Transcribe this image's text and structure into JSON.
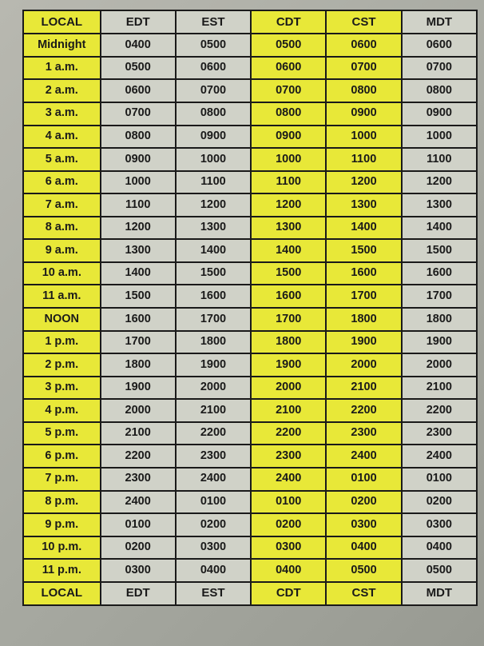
{
  "table": {
    "type": "table",
    "background_color": "#d0d2c8",
    "highlight_color": "#e8e838",
    "border_color": "#1a1a1a",
    "text_color": "#1a1a1a",
    "font_family": "Verdana, Arial, sans-serif",
    "header_fontsize": 15,
    "cell_fontsize": 14.5,
    "font_weight": "bold",
    "border_width": 2,
    "columns": [
      "LOCAL",
      "EDT",
      "EST",
      "CDT",
      "CST",
      "MDT"
    ],
    "column_highlight": [
      true,
      false,
      false,
      true,
      true,
      false
    ],
    "rows": [
      [
        "Midnight",
        "0400",
        "0500",
        "0500",
        "0600",
        "0600"
      ],
      [
        "1 a.m.",
        "0500",
        "0600",
        "0600",
        "0700",
        "0700"
      ],
      [
        "2 a.m.",
        "0600",
        "0700",
        "0700",
        "0800",
        "0800"
      ],
      [
        "3 a.m.",
        "0700",
        "0800",
        "0800",
        "0900",
        "0900"
      ],
      [
        "4 a.m.",
        "0800",
        "0900",
        "0900",
        "1000",
        "1000"
      ],
      [
        "5 a.m.",
        "0900",
        "1000",
        "1000",
        "1100",
        "1100"
      ],
      [
        "6 a.m.",
        "1000",
        "1100",
        "1100",
        "1200",
        "1200"
      ],
      [
        "7 a.m.",
        "1100",
        "1200",
        "1200",
        "1300",
        "1300"
      ],
      [
        "8 a.m.",
        "1200",
        "1300",
        "1300",
        "1400",
        "1400"
      ],
      [
        "9 a.m.",
        "1300",
        "1400",
        "1400",
        "1500",
        "1500"
      ],
      [
        "10 a.m.",
        "1400",
        "1500",
        "1500",
        "1600",
        "1600"
      ],
      [
        "11 a.m.",
        "1500",
        "1600",
        "1600",
        "1700",
        "1700"
      ],
      [
        "NOON",
        "1600",
        "1700",
        "1700",
        "1800",
        "1800"
      ],
      [
        "1 p.m.",
        "1700",
        "1800",
        "1800",
        "1900",
        "1900"
      ],
      [
        "2 p.m.",
        "1800",
        "1900",
        "1900",
        "2000",
        "2000"
      ],
      [
        "3 p.m.",
        "1900",
        "2000",
        "2000",
        "2100",
        "2100"
      ],
      [
        "4 p.m.",
        "2000",
        "2100",
        "2100",
        "2200",
        "2200"
      ],
      [
        "5 p.m.",
        "2100",
        "2200",
        "2200",
        "2300",
        "2300"
      ],
      [
        "6 p.m.",
        "2200",
        "2300",
        "2300",
        "2400",
        "2400"
      ],
      [
        "7 p.m.",
        "2300",
        "2400",
        "2400",
        "0100",
        "0100"
      ],
      [
        "8 p.m.",
        "2400",
        "0100",
        "0100",
        "0200",
        "0200"
      ],
      [
        "9 p.m.",
        "0100",
        "0200",
        "0200",
        "0300",
        "0300"
      ],
      [
        "10 p.m.",
        "0200",
        "0300",
        "0300",
        "0400",
        "0400"
      ],
      [
        "11 p.m.",
        "0300",
        "0400",
        "0400",
        "0500",
        "0500"
      ]
    ],
    "footer": [
      "LOCAL",
      "EDT",
      "EST",
      "CDT",
      "CST",
      "MDT"
    ]
  }
}
